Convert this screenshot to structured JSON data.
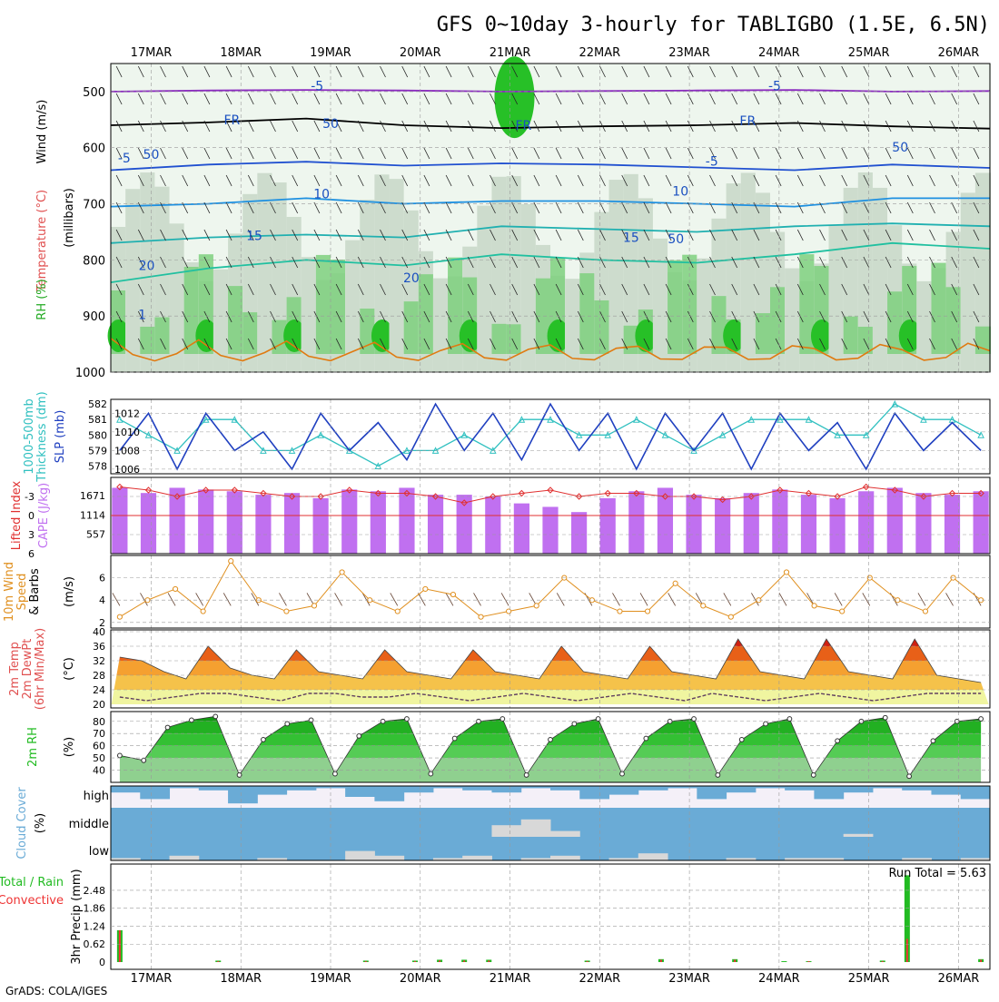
{
  "title": "GFS 0~10day 3-hourly for TABLIGBO (1.5E, 6.5N)",
  "credit": "GrADS: COLA/IGES",
  "dates": [
    "17MAR",
    "18MAR",
    "19MAR",
    "20MAR",
    "21MAR",
    "22MAR",
    "23MAR",
    "24MAR",
    "25MAR",
    "26MAR"
  ],
  "colors": {
    "frame": "#000000",
    "grid": "#9a9a9a",
    "temp_label": "#e05050",
    "wind_label": "#000000",
    "rh_label": "#22aa22",
    "thickness": "#30c0c0",
    "slp": "#2040c0",
    "cape": "#c070f0",
    "lifted": "#e03030",
    "wind10": "#e09020",
    "dewpt": "#604060",
    "rh2m": "#22bb22",
    "cloud": "#6aabd6",
    "cloud_light": "#d8d8d8",
    "total_rain": "#22bb22",
    "conv_rain": "#ee3333"
  },
  "chart_data": [
    {
      "type": "heatmap",
      "panel": "upper-air",
      "ylabel": "(millibars)",
      "left_labels": [
        "Wind (m/s)",
        "Temperature (°C)",
        "RH (%)"
      ],
      "y_ticks": [
        "500",
        "600",
        "700",
        "800",
        "900",
        "1000"
      ],
      "contour_labels": [
        "-5",
        "-5",
        "FR",
        "FR",
        "FR",
        "-5",
        "-5",
        "10",
        "10",
        "15",
        "15",
        "20",
        "20",
        "50",
        "50",
        "50",
        "50",
        "1"
      ],
      "isotherms": [
        {
          "name": "-5 upper",
          "value": -5,
          "pressure_mb": [
            500,
            498,
            497,
            498,
            500,
            499,
            498,
            497,
            500,
            499
          ]
        },
        {
          "name": "FR",
          "value": 0,
          "pressure_mb": [
            560,
            555,
            548,
            560,
            565,
            562,
            560,
            556,
            562,
            566
          ]
        },
        {
          "name": "-5 lower",
          "value": -5,
          "pressure_mb": [
            640,
            630,
            625,
            632,
            628,
            630,
            635,
            640,
            630,
            636
          ]
        },
        {
          "name": "10",
          "value": 10,
          "pressure_mb": [
            705,
            700,
            690,
            700,
            695,
            695,
            700,
            705,
            690,
            690
          ]
        },
        {
          "name": "15",
          "value": 15,
          "pressure_mb": [
            770,
            760,
            755,
            760,
            740,
            745,
            750,
            740,
            735,
            740
          ]
        },
        {
          "name": "20",
          "value": 20,
          "pressure_mb": [
            840,
            815,
            800,
            810,
            790,
            800,
            805,
            790,
            770,
            780
          ]
        }
      ]
    },
    {
      "type": "line",
      "panel": "thickness-slp",
      "left_labels": [
        "1000-500mb",
        "Thickness (dm)"
      ],
      "right_labels": [
        "SLP (mb)"
      ],
      "y_ticks_left": [
        "578",
        "579",
        "580",
        "581",
        "582"
      ],
      "y_ticks_right": [
        "1006",
        "1008",
        "1010",
        "1012"
      ],
      "series": [
        {
          "name": "1000-500mb Thickness",
          "unit": "dm",
          "values": [
            581,
            580,
            579,
            581,
            581,
            579,
            579,
            580,
            579,
            578,
            579,
            579,
            580,
            579,
            581,
            581,
            580,
            580,
            581,
            580,
            579,
            580,
            581,
            581,
            581,
            580,
            580,
            582,
            581,
            581,
            580
          ]
        },
        {
          "name": "SLP",
          "unit": "mb",
          "values": [
            1008,
            1012,
            1006,
            1012,
            1008,
            1010,
            1006,
            1012,
            1008,
            1011,
            1007,
            1013,
            1008,
            1012,
            1007,
            1013,
            1008,
            1012,
            1006,
            1012,
            1008,
            1012,
            1006,
            1012,
            1008,
            1011,
            1006,
            1012,
            1008,
            1011,
            1008
          ]
        }
      ]
    },
    {
      "type": "bar",
      "panel": "cape-li",
      "left_labels": [
        "Lifted Index",
        "CAPE (J/kg)"
      ],
      "y_ticks_li": [
        "-3",
        "0",
        "3",
        "6"
      ],
      "y_ticks_cape": [
        "557",
        "1114",
        "1671"
      ],
      "series": [
        {
          "name": "CAPE",
          "unit": "J/kg",
          "values": [
            1900,
            1750,
            1900,
            1850,
            1800,
            1700,
            1750,
            1600,
            1850,
            1800,
            1900,
            1700,
            1700,
            1650,
            1450,
            1350,
            1200,
            1600,
            1800,
            1900,
            1700,
            1600,
            1750,
            1850,
            1700,
            1600,
            1800,
            1900,
            1750,
            1700,
            1800
          ]
        },
        {
          "name": "Lifted Index",
          "values": [
            -4.5,
            -4,
            -3,
            -4,
            -4,
            -3.5,
            -3,
            -3,
            -4,
            -3.5,
            -3.5,
            -3,
            -2,
            -3,
            -3.5,
            -4,
            -3,
            -3.5,
            -3.5,
            -3,
            -3,
            -2.5,
            -3,
            -4,
            -3.5,
            -3,
            -4.5,
            -4,
            -3,
            -3.5,
            -3.5
          ]
        }
      ]
    },
    {
      "type": "line",
      "panel": "wind10m",
      "left_labels": [
        "10m Wind",
        "Speed",
        "& Barbs"
      ],
      "ylabel": "(m/s)",
      "y_ticks": [
        "2",
        "4",
        "6"
      ],
      "series": [
        {
          "name": "10m Wind Speed",
          "unit": "m/s",
          "values": [
            2.5,
            4,
            5,
            3,
            7.5,
            4,
            3,
            3.5,
            6.5,
            4,
            3,
            5,
            4.5,
            2.5,
            3,
            3.5,
            6,
            4,
            3,
            3,
            5.5,
            3.5,
            2.5,
            4,
            6.5,
            3.5,
            3,
            6,
            4,
            3,
            6,
            4
          ]
        }
      ]
    },
    {
      "type": "area",
      "panel": "temp-dewpt",
      "left_labels": [
        "2m Temp",
        "2m DewPt",
        "(6hr Min/Max)"
      ],
      "ylabel": "(°C)",
      "y_ticks": [
        "20",
        "24",
        "28",
        "32",
        "36",
        "40"
      ],
      "series": [
        {
          "name": "2m Temp",
          "unit": "°C",
          "values": [
            33,
            32,
            29,
            27,
            36,
            30,
            28,
            27,
            35,
            29,
            28,
            27,
            35,
            29,
            28,
            27,
            35,
            29,
            28,
            27,
            36,
            29,
            28,
            27,
            36,
            29,
            28,
            27,
            38,
            29,
            28,
            27,
            38,
            29,
            28,
            27,
            38,
            28,
            27,
            26
          ]
        },
        {
          "name": "2m DewPt",
          "unit": "°C",
          "values": [
            22,
            21,
            22,
            23,
            23,
            22,
            21,
            23,
            23,
            22,
            22,
            23,
            22,
            21,
            22,
            23,
            22,
            21,
            22,
            23,
            22,
            21,
            23,
            22,
            21,
            22,
            23,
            22,
            21,
            22,
            23,
            23,
            23
          ]
        }
      ]
    },
    {
      "type": "area",
      "panel": "rh2m",
      "left_labels": [
        "2m RH"
      ],
      "ylabel": "(%)",
      "y_ticks": [
        "40",
        "50",
        "60",
        "70",
        "80"
      ],
      "series": [
        {
          "name": "2m RH",
          "unit": "%",
          "values": [
            52,
            48,
            75,
            81,
            84,
            36,
            65,
            78,
            81,
            37,
            68,
            80,
            82,
            37,
            66,
            80,
            82,
            36,
            65,
            78,
            82,
            37,
            66,
            80,
            82,
            36,
            65,
            78,
            82,
            36,
            64,
            80,
            83,
            35,
            64,
            80,
            82
          ]
        }
      ]
    },
    {
      "type": "bar",
      "panel": "cloud",
      "left_labels": [
        "Cloud Cover",
        "(%)"
      ],
      "y_ticks": [
        "high",
        "middle",
        "low"
      ],
      "series": [
        {
          "name": "high",
          "unit": "%",
          "values": [
            30,
            60,
            10,
            20,
            80,
            40,
            20,
            10,
            50,
            70,
            30,
            10,
            20,
            30,
            10,
            20,
            60,
            40,
            20,
            10,
            60,
            30,
            10,
            20,
            60,
            30,
            10,
            20,
            40,
            60
          ]
        },
        {
          "name": "middle",
          "unit": "%",
          "values": [
            0,
            0,
            0,
            0,
            0,
            0,
            0,
            0,
            0,
            0,
            0,
            0,
            0,
            40,
            60,
            20,
            0,
            0,
            0,
            0,
            0,
            0,
            0,
            0,
            0,
            10,
            0,
            0,
            0,
            0
          ]
        },
        {
          "name": "low",
          "unit": "%",
          "values": [
            10,
            0,
            20,
            0,
            0,
            10,
            0,
            0,
            40,
            20,
            0,
            10,
            20,
            0,
            10,
            20,
            0,
            10,
            30,
            0,
            0,
            10,
            0,
            10,
            10,
            0,
            0,
            10,
            0,
            10
          ]
        }
      ]
    },
    {
      "type": "bar",
      "panel": "precip",
      "left_labels": [
        "Total / Rain",
        "Convective"
      ],
      "ylabel": "3hr Precip (mm)",
      "annotation": "Run Total = 5.63",
      "y_ticks": [
        "0",
        "0.62",
        "1.24",
        "1.86",
        "2.48"
      ],
      "series": [
        {
          "name": "Total / Rain",
          "unit": "mm",
          "values": [
            1.1,
            0,
            0,
            0,
            0.05,
            0,
            0,
            0,
            0,
            0,
            0.05,
            0,
            0.05,
            0.08,
            0.08,
            0.08,
            0,
            0,
            0,
            0.05,
            0,
            0,
            0.1,
            0,
            0,
            0.1,
            0,
            0.03,
            0.03,
            0,
            0,
            0.05,
            3.0,
            0,
            0,
            0.1
          ]
        },
        {
          "name": "Convective",
          "unit": "mm",
          "values": [
            1.1,
            0,
            0,
            0,
            0.03,
            0,
            0,
            0,
            0,
            0,
            0.03,
            0,
            0.03,
            0.05,
            0.05,
            0.05,
            0,
            0,
            0,
            0.03,
            0,
            0,
            0.08,
            0,
            0,
            0.08,
            0,
            0,
            0.03,
            0,
            0,
            0.03,
            0.8,
            0,
            0,
            0.08
          ]
        }
      ]
    }
  ]
}
